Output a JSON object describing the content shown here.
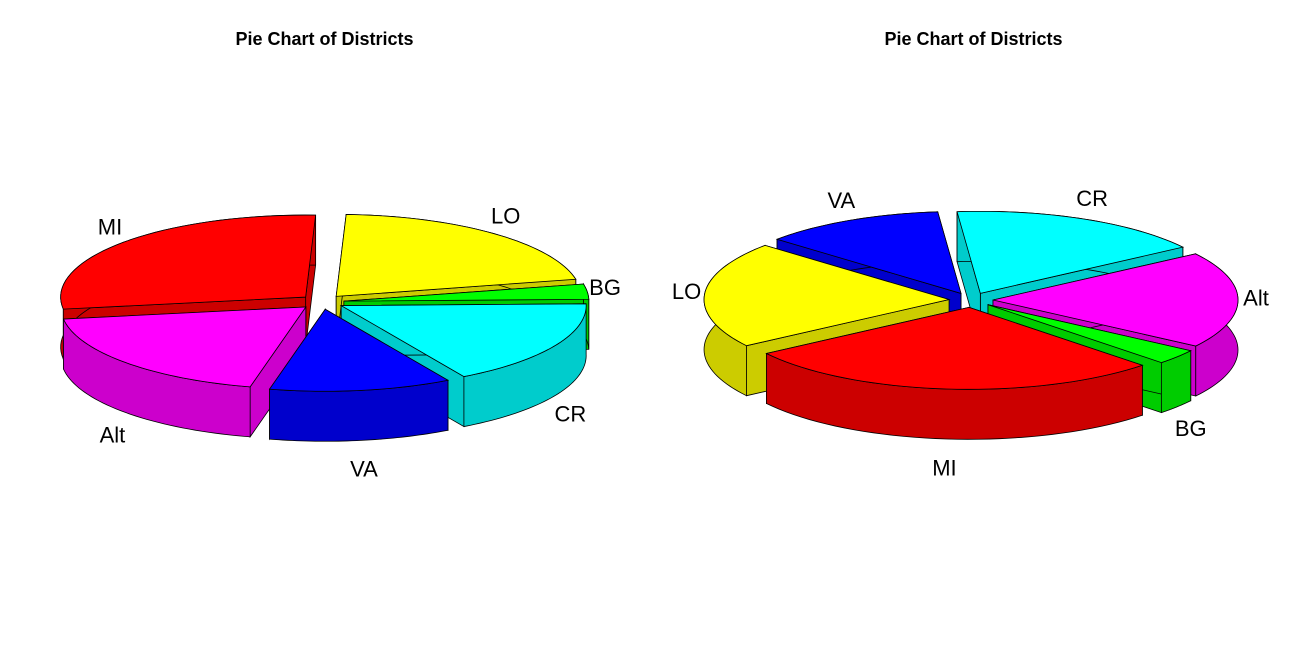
{
  "chart_data": [
    {
      "type": "pie",
      "title": "Pie Chart of Districts",
      "style": "3d-exploded",
      "slices": [
        {
          "label": "MI",
          "value": 28,
          "color": "#ff0000"
        },
        {
          "label": "Alt",
          "value": 19,
          "color": "#ff00ff"
        },
        {
          "label": "VA",
          "value": 12,
          "color": "#0000ff"
        },
        {
          "label": "CR",
          "value": 17,
          "color": "#00ffff"
        },
        {
          "label": "BG",
          "value": 3,
          "color": "#00ff00"
        },
        {
          "label": "LO",
          "value": 21,
          "color": "#ffff00"
        }
      ]
    },
    {
      "type": "pie",
      "title": "Pie Chart of Districts",
      "style": "3d-exploded",
      "slices": [
        {
          "label": "LO",
          "value": 21,
          "color": "#ffff00"
        },
        {
          "label": "MI",
          "value": 28,
          "color": "#ff0000"
        },
        {
          "label": "BG",
          "value": 3,
          "color": "#00ff00"
        },
        {
          "label": "Alt",
          "value": 19,
          "color": "#ff00ff"
        },
        {
          "label": "CR",
          "value": 17,
          "color": "#00ffff"
        },
        {
          "label": "VA",
          "value": 12,
          "color": "#0000ff"
        }
      ]
    }
  ]
}
